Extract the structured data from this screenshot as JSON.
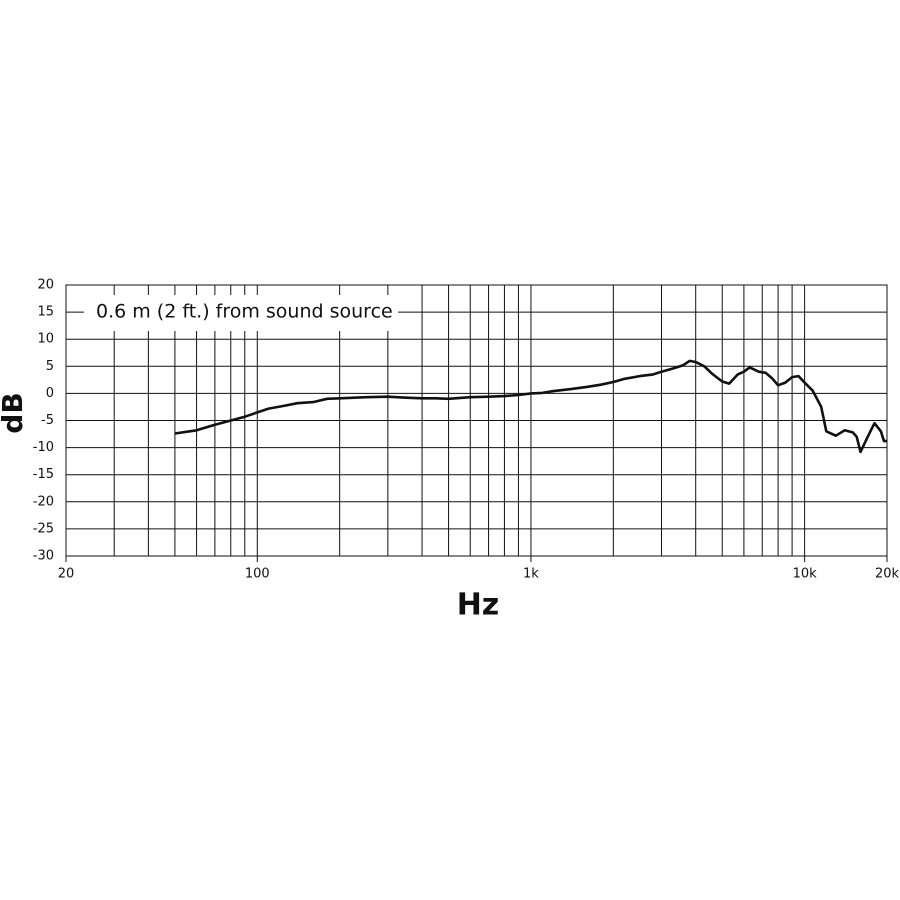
{
  "chart_data": {
    "type": "line",
    "annotation": "0.6 m (2 ft.) from sound source",
    "xlabel": "Hz",
    "ylabel": "dB",
    "xscale": "log",
    "xlim": [
      20,
      20000
    ],
    "ylim": [
      -30,
      20
    ],
    "xticks": [
      20,
      100,
      {
        "value": 1000,
        "label": "1k"
      },
      {
        "value": 10000,
        "label": "10k"
      },
      {
        "value": 20000,
        "label": "20k"
      }
    ],
    "xgrid": [
      30,
      40,
      50,
      60,
      70,
      80,
      90,
      100,
      200,
      300,
      400,
      500,
      600,
      700,
      800,
      900,
      1000,
      2000,
      3000,
      4000,
      5000,
      6000,
      7000,
      8000,
      9000,
      10000,
      20000
    ],
    "yticks": [
      20,
      15,
      10,
      5,
      0,
      -5,
      -10,
      -15,
      -20,
      -25,
      -30
    ],
    "grid": true,
    "series": [
      {
        "color": "#111111",
        "x": [
          50,
          60,
          70,
          80,
          90,
          100,
          110,
          125,
          140,
          160,
          180,
          200,
          250,
          300,
          350,
          400,
          450,
          500,
          600,
          700,
          800,
          900,
          1000,
          1100,
          1200,
          1400,
          1600,
          1800,
          2000,
          2200,
          2500,
          2800,
          3000,
          3300,
          3600,
          3800,
          4000,
          4300,
          4600,
          5000,
          5300,
          5700,
          6000,
          6300,
          6800,
          7200,
          7600,
          8000,
          8500,
          9000,
          9500,
          10000,
          10700,
          11500,
          12000,
          13000,
          14000,
          15000,
          15500,
          16000,
          17000,
          18000,
          19000,
          19500,
          20000
        ],
        "values": [
          -7.4,
          -6.8,
          -5.8,
          -5.0,
          -4.3,
          -3.5,
          -2.8,
          -2.3,
          -1.8,
          -1.6,
          -1.0,
          -0.9,
          -0.7,
          -0.6,
          -0.8,
          -0.9,
          -0.9,
          -1.0,
          -0.7,
          -0.6,
          -0.5,
          -0.3,
          0,
          0.1,
          0.4,
          0.8,
          1.2,
          1.6,
          2.1,
          2.7,
          3.2,
          3.5,
          4.0,
          4.6,
          5.2,
          6.0,
          5.8,
          5.0,
          3.6,
          2.2,
          1.8,
          3.5,
          4.0,
          4.8,
          4.0,
          3.8,
          2.8,
          1.5,
          2.0,
          3.0,
          3.2,
          2.0,
          0.5,
          -2.5,
          -7.0,
          -7.8,
          -6.8,
          -7.2,
          -8.0,
          -10.8,
          -8.0,
          -5.5,
          -7.0,
          -8.8,
          -8.8
        ]
      }
    ]
  }
}
